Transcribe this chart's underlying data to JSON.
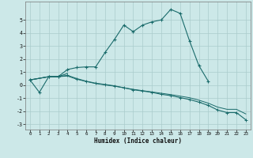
{
  "xlabel": "Humidex (Indice chaleur)",
  "bg_color": "#cce8e8",
  "grid_color": "#aacccc",
  "line_color": "#1a6b6b",
  "xlim": [
    -0.5,
    23.5
  ],
  "ylim": [
    -3.4,
    6.4
  ],
  "xticks": [
    0,
    1,
    2,
    3,
    4,
    5,
    6,
    7,
    8,
    9,
    10,
    11,
    12,
    13,
    14,
    15,
    16,
    17,
    18,
    19,
    20,
    21,
    22,
    23
  ],
  "yticks": [
    -3,
    -2,
    -1,
    0,
    1,
    2,
    3,
    4,
    5
  ],
  "line1_x": [
    0,
    1,
    2,
    3,
    4,
    5,
    6,
    7,
    8,
    9,
    10,
    11,
    12,
    13,
    14,
    15,
    16,
    17,
    18,
    19
  ],
  "line1_y": [
    0.4,
    -0.55,
    0.65,
    0.65,
    1.2,
    1.35,
    1.4,
    1.4,
    2.5,
    3.5,
    4.6,
    4.1,
    4.6,
    4.85,
    5.0,
    5.8,
    5.5,
    3.4,
    1.5,
    0.3
  ],
  "line2_x": [
    0,
    2,
    3,
    4
  ],
  "line2_y": [
    0.4,
    0.65,
    0.65,
    0.9
  ],
  "line3_x": [
    0,
    2,
    3,
    4,
    5,
    6,
    7,
    8,
    9,
    10,
    11,
    12,
    13,
    14,
    15,
    16,
    17,
    18,
    19,
    20,
    21,
    22,
    23
  ],
  "line3_y": [
    0.4,
    0.65,
    0.65,
    0.75,
    0.5,
    0.3,
    0.15,
    0.05,
    -0.05,
    -0.2,
    -0.35,
    -0.45,
    -0.55,
    -0.7,
    -0.8,
    -0.95,
    -1.1,
    -1.3,
    -1.55,
    -1.9,
    -2.1,
    -2.1,
    -2.65
  ],
  "line4_x": [
    0,
    2,
    3,
    4,
    5,
    6,
    7,
    8,
    9,
    10,
    11,
    12,
    13,
    14,
    15,
    16,
    17,
    18,
    19,
    20,
    21,
    22,
    23
  ],
  "line4_y": [
    0.4,
    0.65,
    0.65,
    0.7,
    0.45,
    0.28,
    0.12,
    0.02,
    -0.08,
    -0.2,
    -0.32,
    -0.42,
    -0.52,
    -0.62,
    -0.72,
    -0.84,
    -0.96,
    -1.15,
    -1.38,
    -1.68,
    -1.85,
    -1.85,
    -2.2
  ]
}
